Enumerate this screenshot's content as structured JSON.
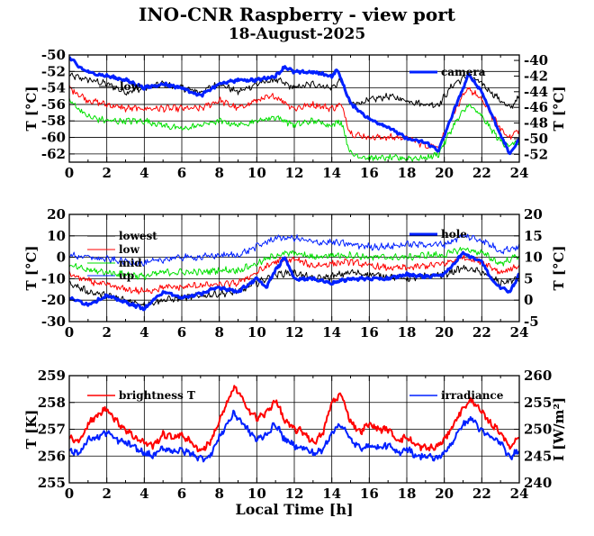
{
  "header": {
    "title": "INO-CNR Raspberry - view port",
    "date": "18-August-2025"
  },
  "colors": {
    "black": "#000000",
    "red": "#ff0000",
    "green": "#00e000",
    "blue": "#0020ff",
    "thick_blue": "#0020ff"
  },
  "chart_data": [
    {
      "type": "line",
      "xlabel": "",
      "ylabel": "T [°C]",
      "y2label": "T [°C]",
      "xlim": [
        0,
        24
      ],
      "ylim": [
        -63,
        -50
      ],
      "y2lim": [
        -53,
        -39.3
      ],
      "xticks": [
        0,
        2,
        4,
        6,
        8,
        10,
        12,
        14,
        16,
        18,
        20,
        22,
        24
      ],
      "yticks": [
        -62,
        -60,
        -58,
        -56,
        -54,
        -52,
        -50
      ],
      "y2ticks": [
        -52,
        -50,
        -48,
        -46,
        -44,
        -42,
        -40
      ],
      "grid": true,
      "legend": [
        "low",
        "camera"
      ],
      "series": [
        {
          "name": "",
          "axis": "y",
          "color": "black",
          "width": 1,
          "x": [
            0,
            1,
            2,
            3,
            4,
            5,
            6,
            7,
            8,
            9,
            10,
            11,
            12,
            13,
            14,
            14.5,
            15,
            16,
            17,
            18,
            19,
            19.7,
            20.5,
            21.3,
            22,
            23,
            23.5,
            24
          ],
          "y": [
            -52.5,
            -53,
            -53.5,
            -54.5,
            -54,
            -53.5,
            -54,
            -54.5,
            -53.5,
            -54.5,
            -53.5,
            -53,
            -54,
            -53.5,
            -54,
            -53,
            -56,
            -55.5,
            -55,
            -55.5,
            -56,
            -56,
            -53.5,
            -52.5,
            -53.5,
            -55.5,
            -56.5,
            -55
          ]
        },
        {
          "name": "",
          "axis": "y",
          "color": "red",
          "width": 1,
          "x": [
            0,
            1,
            2,
            3,
            4,
            5,
            6,
            7,
            8,
            9,
            10,
            11,
            12,
            13,
            14,
            14.5,
            15,
            16,
            17,
            18,
            19,
            19.7,
            20.5,
            21.3,
            22,
            23,
            23.5,
            24
          ],
          "y": [
            -54,
            -55.5,
            -56,
            -56.5,
            -56.5,
            -56.5,
            -56.5,
            -56.5,
            -55.5,
            -56.5,
            -55.5,
            -55,
            -56.5,
            -56,
            -56.5,
            -56,
            -59.5,
            -60,
            -60,
            -60,
            -61,
            -61,
            -57,
            -54,
            -55.5,
            -59,
            -60,
            -59
          ]
        },
        {
          "name": "",
          "axis": "y",
          "color": "green",
          "width": 1,
          "x": [
            0,
            1,
            2,
            3,
            4,
            5,
            6,
            7,
            8,
            9,
            10,
            11,
            12,
            13,
            14,
            14.5,
            15,
            16,
            17,
            18,
            19,
            19.7,
            20.5,
            21.3,
            22,
            23,
            23.5,
            24
          ],
          "y": [
            -55.5,
            -57.5,
            -58,
            -58,
            -58,
            -58.5,
            -59,
            -58.5,
            -58,
            -58.5,
            -58,
            -57.5,
            -58.5,
            -58,
            -58.5,
            -58,
            -62,
            -62.5,
            -62.5,
            -62.5,
            -62.5,
            -62,
            -58.5,
            -56,
            -57.5,
            -60.5,
            -61,
            -60.5
          ]
        },
        {
          "name": "",
          "axis": "y2",
          "color": "thick_blue",
          "width": 3,
          "x": [
            0,
            0.5,
            1,
            2,
            3,
            4,
            5,
            6,
            7,
            8,
            9,
            10,
            11,
            11.5,
            12,
            13,
            14,
            14.3,
            15,
            16,
            17,
            18,
            19,
            19.7,
            20.5,
            21.3,
            22,
            23,
            23.5,
            24
          ],
          "y": [
            -39.6,
            -40.8,
            -41.5,
            -42,
            -42.5,
            -43.5,
            -43,
            -43.5,
            -44.5,
            -43,
            -42.5,
            -42.5,
            -42,
            -40.8,
            -41.5,
            -41.5,
            -42,
            -41.2,
            -45.5,
            -47.5,
            -48.5,
            -50,
            -50.5,
            -51.5,
            -46.5,
            -41.8,
            -44,
            -49.5,
            -52,
            -50
          ]
        }
      ]
    },
    {
      "type": "line",
      "xlabel": "",
      "ylabel": "T [°C]",
      "y2label": "T [°C]",
      "xlim": [
        0,
        24
      ],
      "ylim": [
        -30,
        20
      ],
      "y2lim": [
        -5,
        20
      ],
      "xticks": [
        0,
        2,
        4,
        6,
        8,
        10,
        12,
        14,
        16,
        18,
        20,
        22,
        24
      ],
      "yticks": [
        -30,
        -20,
        -10,
        0,
        10,
        20
      ],
      "y2ticks": [
        -5,
        0,
        5,
        10,
        15,
        20
      ],
      "grid": true,
      "legend": [
        "lowest",
        "low",
        "mid",
        "up",
        "hole"
      ],
      "series": [
        {
          "name": "",
          "axis": "y",
          "color": "black",
          "width": 1,
          "x": [
            0,
            1,
            2,
            3,
            4,
            5,
            6,
            7,
            8,
            9,
            10,
            11,
            12,
            13,
            14,
            15,
            16,
            17,
            18,
            19,
            20,
            21,
            22,
            23,
            24
          ],
          "y": [
            -12,
            -16,
            -18,
            -20,
            -22,
            -20,
            -19,
            -18,
            -17,
            -16,
            -12,
            -8,
            -7,
            -10,
            -9,
            -7,
            -8,
            -9,
            -10,
            -9,
            -8,
            -5,
            -7,
            -12,
            -10
          ]
        },
        {
          "name": "",
          "axis": "y",
          "color": "red",
          "width": 1,
          "x": [
            0,
            1,
            2,
            3,
            4,
            5,
            6,
            7,
            8,
            9,
            10,
            11,
            12,
            13,
            14,
            15,
            16,
            17,
            18,
            19,
            20,
            21,
            22,
            23,
            24
          ],
          "y": [
            -8,
            -11,
            -13,
            -15,
            -16,
            -14,
            -14,
            -13,
            -13,
            -12,
            -7,
            -2,
            -1,
            -4,
            -3,
            -2,
            -4,
            -5,
            -5,
            -4,
            -3,
            0,
            -2,
            -7,
            -4
          ]
        },
        {
          "name": "",
          "axis": "y",
          "color": "green",
          "width": 1,
          "x": [
            0,
            1,
            2,
            3,
            4,
            5,
            6,
            7,
            8,
            9,
            10,
            11,
            12,
            13,
            14,
            15,
            16,
            17,
            18,
            19,
            20,
            21,
            22,
            23,
            24
          ],
          "y": [
            -4,
            -6,
            -7,
            -8,
            -9,
            -7,
            -7,
            -7,
            -6,
            -6,
            -3,
            1,
            2,
            0,
            1,
            1,
            0,
            0,
            0,
            1,
            1,
            4,
            2,
            -3,
            1
          ]
        },
        {
          "name": "",
          "axis": "y",
          "color": "blue",
          "width": 1,
          "x": [
            0,
            1,
            2,
            3,
            4,
            5,
            6,
            7,
            8,
            9,
            10,
            11,
            12,
            13,
            14,
            15,
            16,
            17,
            18,
            19,
            20,
            21,
            22,
            23,
            24
          ],
          "y": [
            1,
            0,
            -1,
            -2,
            -3,
            -1,
            0,
            0,
            1,
            1,
            5,
            9,
            9,
            7,
            7,
            6,
            5,
            5,
            6,
            6,
            6,
            10,
            8,
            3,
            5
          ]
        },
        {
          "name": "",
          "axis": "y2",
          "color": "thick_blue",
          "width": 3,
          "x": [
            0,
            1,
            2,
            3,
            4,
            5,
            6,
            7,
            8,
            9,
            10,
            10.5,
            11,
            11.5,
            12,
            13,
            14,
            15,
            16,
            17,
            18,
            19,
            20,
            21,
            22,
            22.5,
            23,
            23.5,
            24
          ],
          "y": [
            0.5,
            -1,
            1,
            -0.5,
            -2,
            2,
            0.5,
            1.5,
            3,
            2,
            5,
            3,
            7,
            10,
            5,
            5,
            4,
            5,
            5,
            5,
            6,
            5.5,
            6,
            11,
            9,
            5,
            3,
            2,
            6
          ]
        }
      ]
    },
    {
      "type": "line",
      "xlabel": "Local Time [h]",
      "ylabel": "T [K]",
      "y2label": "I [W/m²]",
      "xlim": [
        0,
        24
      ],
      "ylim": [
        255,
        259
      ],
      "y2lim": [
        240,
        260
      ],
      "xticks": [
        0,
        2,
        4,
        6,
        8,
        10,
        12,
        14,
        16,
        18,
        20,
        22,
        24
      ],
      "yticks": [
        255,
        256,
        257,
        258,
        259
      ],
      "y2ticks": [
        240,
        245,
        250,
        255,
        260
      ],
      "grid": true,
      "legend": [
        "brightness T",
        "irradiance"
      ],
      "series": [
        {
          "name": "",
          "axis": "y",
          "color": "red",
          "width": 2,
          "x": [
            0,
            0.5,
            1,
            1.5,
            2,
            2.5,
            3,
            3.5,
            4,
            4.5,
            5,
            5.5,
            6,
            6.5,
            7,
            7.5,
            8,
            8.5,
            8.8,
            9.5,
            10,
            10.5,
            11,
            11.5,
            12,
            12.5,
            13,
            13.5,
            14,
            14.5,
            15,
            15.5,
            16,
            16.5,
            17,
            17.5,
            18,
            18.5,
            19,
            19.5,
            20,
            20.5,
            21,
            21.5,
            22,
            22.5,
            23,
            23.5,
            24
          ],
          "y": [
            256.7,
            256.5,
            257.2,
            257.5,
            257.8,
            257.3,
            257,
            256.7,
            256.5,
            256.4,
            256.8,
            256.7,
            256.8,
            256.5,
            256.2,
            256.5,
            257.3,
            258.1,
            258.6,
            257.8,
            257.4,
            257.6,
            258.1,
            257.3,
            257,
            256.9,
            256.5,
            256.8,
            258,
            258.3,
            257.3,
            256.9,
            257.2,
            257,
            257,
            256.6,
            256.7,
            256.4,
            256.3,
            256.3,
            256.6,
            257.2,
            257.8,
            258.1,
            257.6,
            257.2,
            256.9,
            256.3,
            256.8
          ]
        },
        {
          "name": "",
          "axis": "y2",
          "color": "blue",
          "width": 2,
          "x": [
            0,
            0.5,
            1,
            1.5,
            2,
            2.5,
            3,
            3.5,
            4,
            4.5,
            5,
            5.5,
            6,
            6.5,
            7,
            7.5,
            8,
            8.5,
            8.8,
            9.5,
            10,
            10.5,
            11,
            11.5,
            12,
            12.5,
            13,
            13.5,
            14,
            14.5,
            15,
            15.5,
            16,
            16.5,
            17,
            17.5,
            18,
            18.5,
            19,
            19.5,
            20,
            20.5,
            21,
            21.5,
            22,
            22.5,
            23,
            23.5,
            24
          ],
          "y": [
            246,
            245.5,
            248,
            248.5,
            249.5,
            248,
            247.5,
            246.5,
            245.5,
            245,
            246.5,
            246,
            246,
            245.5,
            244.5,
            245,
            248.5,
            251.5,
            253,
            250,
            248,
            249,
            251,
            248,
            247,
            246.5,
            245.5,
            246,
            249.5,
            251,
            248,
            246.5,
            247,
            246.5,
            247,
            245.5,
            246.5,
            245,
            245,
            244.5,
            245.5,
            248,
            251,
            252,
            249.5,
            248.5,
            247.5,
            244.5,
            246.5
          ]
        }
      ]
    }
  ]
}
